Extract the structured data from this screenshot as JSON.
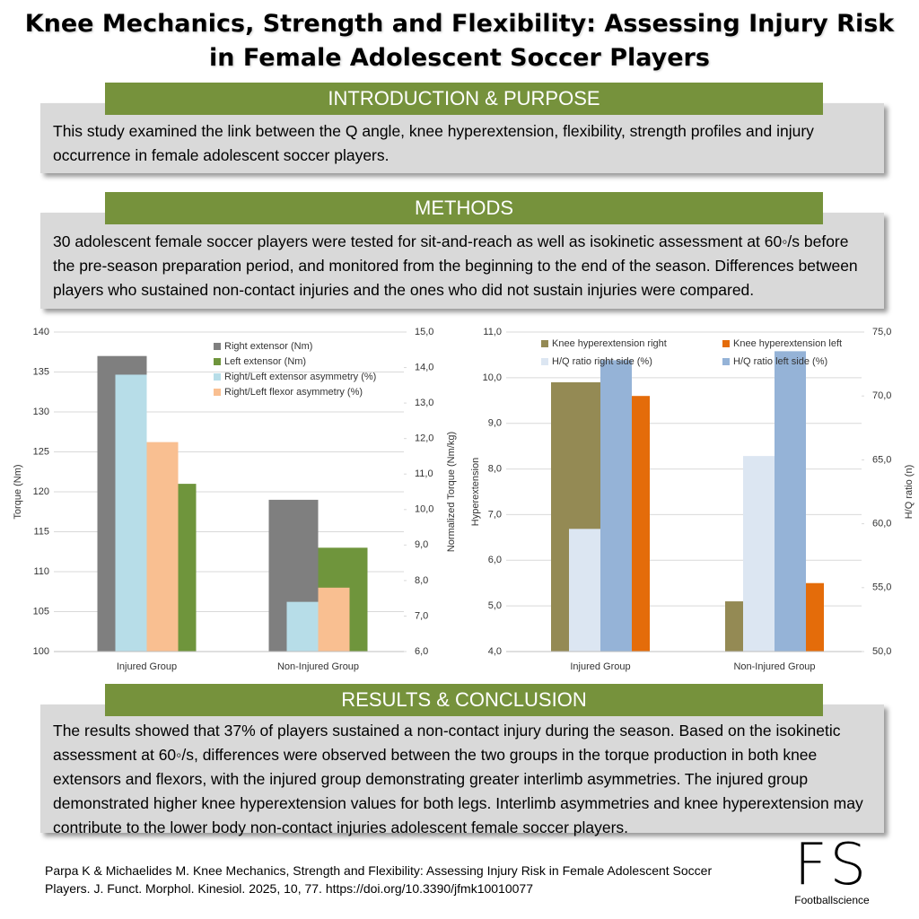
{
  "title": [
    "Knee Mechanics, Strength and Flexibility: Assessing Injury Risk",
    "in Female Adolescent Soccer Players"
  ],
  "introduction": {
    "heading": "INTRODUCTION & PURPOSE",
    "text": "This study examined the link between the Q angle, knee hyperextension, flexibility, strength profiles and injury occurrence in female adolescent soccer players."
  },
  "methods": {
    "heading": "METHODS",
    "text": "30 adolescent female soccer players were tested for sit-and-reach as well as isokinetic assessment at 60◦/s before the pre-season preparation period, and monitored from the beginning to the end of the season. Differences between players who sustained non-contact injuries and the ones who did not sustain injuries were compared."
  },
  "results": {
    "heading": "RESULTS & CONCLUSION",
    "text": "The results showed that 37% of players sustained a non-contact injury during the season. Based on the isokinetic assessment at 60◦/s, differences were observed between the two groups in the torque production in both knee extensors and flexors, with the injured group demonstrating greater interlimb asymmetries. The injured group demonstrated higher knee hyperextension values for both legs. Interlimb asymmetries and knee hyperextension may contribute to the lower body non-contact injuries adolescent female soccer players."
  },
  "citation": "Parpa K & Michaelides M. Knee Mechanics, Strength and Flexibility: Assessing Injury Risk in Female Adolescent Soccer Players. J. Funct. Morphol. Kinesiol. 2025, 10, 77. https://doi.org/10.3390/jfmk10010077",
  "logo": {
    "mark": "FS",
    "name": "Footballscience"
  },
  "chart_data": [
    {
      "type": "bar",
      "categories": [
        "Injured Group",
        "Non-Injured Group"
      ],
      "ylabel": "Torque (Nm)",
      "y2label": "Normalized Torque (Nm/kg)",
      "ylim": [
        100,
        140
      ],
      "yticks": [
        100,
        105,
        110,
        115,
        120,
        125,
        130,
        135,
        140
      ],
      "y2lim": [
        6,
        15
      ],
      "y2ticks": [
        {
          "value": 6,
          "label": "6,0"
        },
        {
          "value": 7,
          "label": "7,0"
        },
        {
          "value": 8,
          "label": "8,0"
        },
        {
          "value": 9,
          "label": "9,0"
        },
        {
          "value": 10,
          "label": "10,0"
        },
        {
          "value": 11,
          "label": "11,0"
        },
        {
          "value": 12,
          "label": "12,0"
        },
        {
          "value": 13,
          "label": "13,0"
        },
        {
          "value": 14,
          "label": "14,0"
        },
        {
          "value": 15,
          "label": "15,0"
        }
      ],
      "grid": true,
      "legend": "top",
      "series": [
        {
          "name": "Right extensor (Nm)",
          "color": "#7f7f7f",
          "values": [
            137,
            119
          ]
        },
        {
          "name": "Left extensor (Nm)",
          "color": "#6f953c",
          "values": [
            121,
            113
          ]
        },
        {
          "name": "Right/Left extensor asymmetry (%)",
          "color": "#b7dde8",
          "values": [
            13.8,
            7.4
          ],
          "axis": "y2"
        },
        {
          "name": "Right/Left flexor asymmetry (%)",
          "color": "#f9bf91",
          "values": [
            11.9,
            7.8
          ],
          "axis": "y2"
        }
      ]
    },
    {
      "type": "bar",
      "categories": [
        "Injured Group",
        "Non-Injured Group"
      ],
      "ylabel": "Hyperextension",
      "y2label": "H/Q ratio (n)",
      "ylim": [
        4,
        11
      ],
      "yticks": [
        {
          "value": 4,
          "label": "4,0"
        },
        {
          "value": 5,
          "label": "5,0"
        },
        {
          "value": 6,
          "label": "6,0"
        },
        {
          "value": 7,
          "label": "7,0"
        },
        {
          "value": 8,
          "label": "8,0"
        },
        {
          "value": 9,
          "label": "9,0"
        },
        {
          "value": 10,
          "label": "10,0"
        },
        {
          "value": 11,
          "label": "11,0"
        }
      ],
      "y2lim": [
        50,
        75
      ],
      "y2ticks": [
        {
          "value": 50,
          "label": "50,0"
        },
        {
          "value": 55,
          "label": "55,0"
        },
        {
          "value": 60,
          "label": "60,0"
        },
        {
          "value": 65,
          "label": "65,0"
        },
        {
          "value": 70,
          "label": "70,0"
        },
        {
          "value": 75,
          "label": "75,0"
        }
      ],
      "grid": true,
      "legend": "top",
      "series": [
        {
          "name": "Knee hyperextension right",
          "color": "#948a54",
          "values": [
            9.9,
            5.1
          ]
        },
        {
          "name": "Knee hyperextension left",
          "color": "#e46c0a",
          "values": [
            9.6,
            5.5
          ]
        },
        {
          "name": "H/Q ratio right side (%)",
          "color": "#dce6f2",
          "values": [
            59.6,
            65.3
          ],
          "axis": "y2"
        },
        {
          "name": "H/Q ratio left side (%)",
          "color": "#95b3d7",
          "values": [
            72.8,
            73.5
          ],
          "axis": "y2"
        }
      ]
    }
  ]
}
